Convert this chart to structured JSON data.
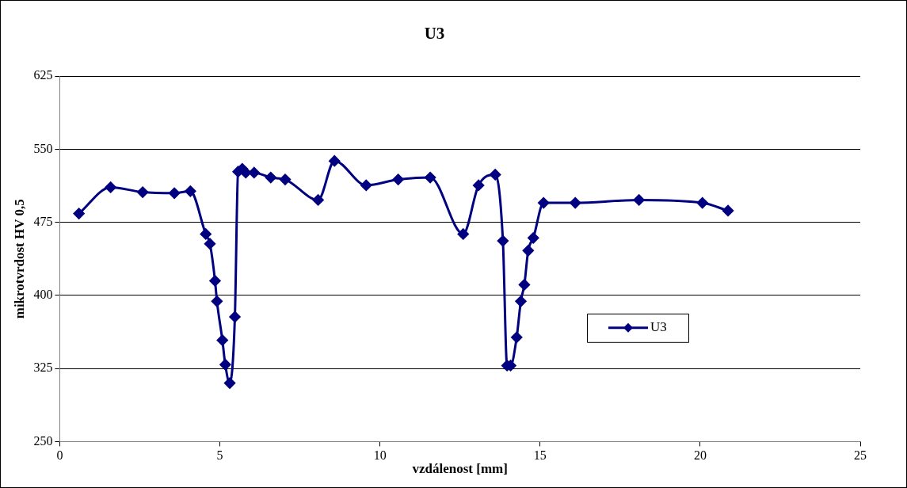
{
  "chart_data": {
    "type": "line",
    "title": "U3",
    "xlabel": "vzdálenost [mm]",
    "ylabel": "mikrotvrdost HV 0,5",
    "x": [
      0.6,
      1.59,
      2.59,
      3.58,
      4.08,
      4.56,
      4.69,
      4.85,
      4.91,
      5.08,
      5.17,
      5.31,
      5.47,
      5.57,
      5.7,
      5.81,
      6.07,
      6.59,
      7.04,
      8.07,
      8.58,
      9.57,
      10.57,
      11.57,
      12.6,
      13.08,
      13.6,
      13.84,
      13.97,
      14.08,
      14.27,
      14.4,
      14.51,
      14.63,
      14.79,
      15.11,
      16.1,
      18.09,
      20.07,
      20.87
    ],
    "series": [
      {
        "name": "U3",
        "color": "#000080",
        "values": [
          484,
          511,
          506,
          505,
          507,
          463,
          453,
          415,
          394,
          354,
          329,
          310,
          378,
          527,
          530,
          526,
          526,
          521,
          519,
          498,
          538,
          513,
          519,
          521,
          463,
          513,
          524,
          456,
          328,
          328,
          357,
          394,
          411,
          446,
          459,
          495,
          495,
          498,
          495,
          487
        ]
      }
    ],
    "xlim": [
      0,
      25
    ],
    "xticks": [
      0,
      5,
      10,
      15,
      20,
      25
    ],
    "ylim": [
      250,
      625
    ],
    "yticks": [
      250,
      325,
      400,
      475,
      550,
      625
    ],
    "grid": "y",
    "legend": "right",
    "marker": "diamond",
    "line_style": "solid"
  }
}
